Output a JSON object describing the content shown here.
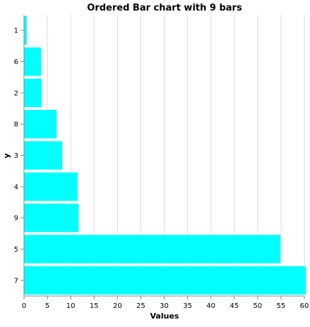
{
  "chart_data": {
    "type": "bar",
    "orientation": "horizontal",
    "title": "Ordered Bar chart with 9 bars",
    "xlabel": "Values",
    "ylabel": "y",
    "categories": [
      "1",
      "6",
      "2",
      "8",
      "3",
      "4",
      "9",
      "5",
      "7"
    ],
    "values": [
      0.6,
      3.7,
      3.8,
      7.0,
      8.2,
      11.5,
      11.7,
      54.9,
      60.3
    ],
    "xlim": [
      0,
      60
    ],
    "xticks": [
      0,
      5,
      10,
      15,
      20,
      25,
      30,
      35,
      40,
      45,
      50,
      55,
      60
    ],
    "grid": true,
    "colors": {
      "bar": "#00ffff",
      "grid": "#dddddd",
      "axis": "#888888"
    }
  }
}
